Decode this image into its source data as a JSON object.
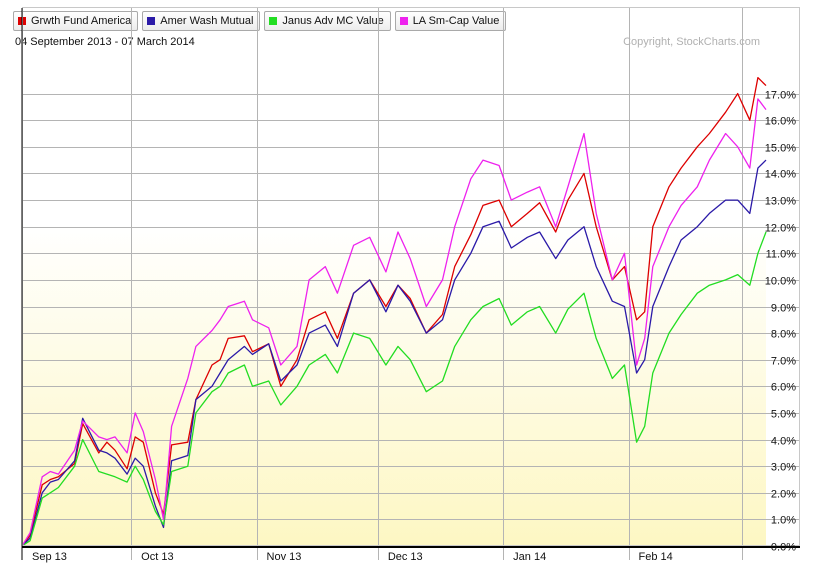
{
  "header": {
    "subtitle": "04 September 2013 - 07 March 2014",
    "copyright": "Copyright, StockCharts.com"
  },
  "chart_data": {
    "type": "line",
    "title": "",
    "xlabel": "",
    "ylabel": "",
    "ylim": [
      0,
      18
    ],
    "x_range": [
      "2013-09-04",
      "2014-03-07"
    ],
    "x_tick_labels": [
      {
        "label": "Sep 13",
        "date": "2013-09-01"
      },
      {
        "label": "Oct 13",
        "date": "2013-10-01"
      },
      {
        "label": "Nov 13",
        "date": "2013-11-01"
      },
      {
        "label": "Dec 13",
        "date": "2013-12-01"
      },
      {
        "label": "Jan 14",
        "date": "2014-01-01"
      },
      {
        "label": "Feb 14",
        "date": "2014-02-01"
      }
    ],
    "y_ticks": [
      0,
      1,
      2,
      3,
      4,
      5,
      6,
      7,
      8,
      9,
      10,
      11,
      12,
      13,
      14,
      15,
      16,
      17
    ],
    "y_tick_suffix": ".0%",
    "grid": true,
    "legend_position": "top-left",
    "background": "yellow-gradient",
    "series": [
      {
        "name": "Grwth Fund America",
        "color": "#dd0000",
        "points": [
          [
            "2013-09-04",
            0.0
          ],
          [
            "2013-09-06",
            0.4
          ],
          [
            "2013-09-09",
            2.3
          ],
          [
            "2013-09-11",
            2.5
          ],
          [
            "2013-09-13",
            2.6
          ],
          [
            "2013-09-17",
            3.1
          ],
          [
            "2013-09-19",
            4.6
          ],
          [
            "2013-09-23",
            3.5
          ],
          [
            "2013-09-25",
            3.9
          ],
          [
            "2013-09-27",
            3.6
          ],
          [
            "2013-09-30",
            2.9
          ],
          [
            "2013-10-02",
            4.1
          ],
          [
            "2013-10-04",
            3.9
          ],
          [
            "2013-10-07",
            2.0
          ],
          [
            "2013-10-09",
            1.2
          ],
          [
            "2013-10-11",
            3.8
          ],
          [
            "2013-10-15",
            3.9
          ],
          [
            "2013-10-17",
            5.5
          ],
          [
            "2013-10-21",
            6.8
          ],
          [
            "2013-10-23",
            7.0
          ],
          [
            "2013-10-25",
            7.8
          ],
          [
            "2013-10-29",
            7.9
          ],
          [
            "2013-10-31",
            7.3
          ],
          [
            "2013-11-04",
            7.6
          ],
          [
            "2013-11-07",
            6.0
          ],
          [
            "2013-11-11",
            7.0
          ],
          [
            "2013-11-14",
            8.5
          ],
          [
            "2013-11-18",
            8.8
          ],
          [
            "2013-11-21",
            7.8
          ],
          [
            "2013-11-25",
            9.5
          ],
          [
            "2013-11-29",
            10.0
          ],
          [
            "2013-12-03",
            9.0
          ],
          [
            "2013-12-06",
            9.8
          ],
          [
            "2013-12-09",
            9.3
          ],
          [
            "2013-12-13",
            8.0
          ],
          [
            "2013-12-17",
            8.7
          ],
          [
            "2013-12-20",
            10.5
          ],
          [
            "2013-12-24",
            11.7
          ],
          [
            "2013-12-27",
            12.8
          ],
          [
            "2013-12-31",
            13.0
          ],
          [
            "2014-01-03",
            12.0
          ],
          [
            "2014-01-07",
            12.5
          ],
          [
            "2014-01-10",
            12.9
          ],
          [
            "2014-01-14",
            11.8
          ],
          [
            "2014-01-17",
            13.0
          ],
          [
            "2014-01-21",
            14.0
          ],
          [
            "2014-01-24",
            12.0
          ],
          [
            "2014-01-28",
            10.0
          ],
          [
            "2014-01-31",
            10.5
          ],
          [
            "2014-02-03",
            8.5
          ],
          [
            "2014-02-05",
            8.8
          ],
          [
            "2014-02-07",
            12.0
          ],
          [
            "2014-02-11",
            13.5
          ],
          [
            "2014-02-14",
            14.2
          ],
          [
            "2014-02-18",
            15.0
          ],
          [
            "2014-02-21",
            15.5
          ],
          [
            "2014-02-25",
            16.3
          ],
          [
            "2014-02-28",
            17.0
          ],
          [
            "2014-03-03",
            16.0
          ],
          [
            "2014-03-05",
            17.6
          ],
          [
            "2014-03-07",
            17.3
          ]
        ]
      },
      {
        "name": "Amer Wash Mutual",
        "color": "#2b1aa8",
        "points": [
          [
            "2013-09-04",
            0.0
          ],
          [
            "2013-09-06",
            0.3
          ],
          [
            "2013-09-09",
            2.0
          ],
          [
            "2013-09-11",
            2.4
          ],
          [
            "2013-09-13",
            2.5
          ],
          [
            "2013-09-17",
            3.2
          ],
          [
            "2013-09-19",
            4.8
          ],
          [
            "2013-09-23",
            3.6
          ],
          [
            "2013-09-25",
            3.5
          ],
          [
            "2013-09-27",
            3.3
          ],
          [
            "2013-09-30",
            2.7
          ],
          [
            "2013-10-02",
            3.3
          ],
          [
            "2013-10-04",
            3.0
          ],
          [
            "2013-10-07",
            1.5
          ],
          [
            "2013-10-09",
            0.7
          ],
          [
            "2013-10-11",
            3.2
          ],
          [
            "2013-10-15",
            3.4
          ],
          [
            "2013-10-17",
            5.5
          ],
          [
            "2013-10-21",
            6.0
          ],
          [
            "2013-10-23",
            6.5
          ],
          [
            "2013-10-25",
            7.0
          ],
          [
            "2013-10-29",
            7.5
          ],
          [
            "2013-10-31",
            7.2
          ],
          [
            "2013-11-04",
            7.6
          ],
          [
            "2013-11-07",
            6.2
          ],
          [
            "2013-11-11",
            6.8
          ],
          [
            "2013-11-14",
            8.0
          ],
          [
            "2013-11-18",
            8.3
          ],
          [
            "2013-11-21",
            7.5
          ],
          [
            "2013-11-25",
            9.5
          ],
          [
            "2013-11-29",
            10.0
          ],
          [
            "2013-12-03",
            8.8
          ],
          [
            "2013-12-06",
            9.8
          ],
          [
            "2013-12-09",
            9.2
          ],
          [
            "2013-12-13",
            8.0
          ],
          [
            "2013-12-17",
            8.5
          ],
          [
            "2013-12-20",
            10.0
          ],
          [
            "2013-12-24",
            11.0
          ],
          [
            "2013-12-27",
            12.0
          ],
          [
            "2013-12-31",
            12.2
          ],
          [
            "2014-01-03",
            11.2
          ],
          [
            "2014-01-07",
            11.6
          ],
          [
            "2014-01-10",
            11.8
          ],
          [
            "2014-01-14",
            10.8
          ],
          [
            "2014-01-17",
            11.5
          ],
          [
            "2014-01-21",
            12.0
          ],
          [
            "2014-01-24",
            10.5
          ],
          [
            "2014-01-28",
            9.2
          ],
          [
            "2014-01-31",
            9.0
          ],
          [
            "2014-02-03",
            6.5
          ],
          [
            "2014-02-05",
            7.0
          ],
          [
            "2014-02-07",
            9.0
          ],
          [
            "2014-02-11",
            10.5
          ],
          [
            "2014-02-14",
            11.5
          ],
          [
            "2014-02-18",
            12.0
          ],
          [
            "2014-02-21",
            12.5
          ],
          [
            "2014-02-25",
            13.0
          ],
          [
            "2014-02-28",
            13.0
          ],
          [
            "2014-03-03",
            12.5
          ],
          [
            "2014-03-05",
            14.2
          ],
          [
            "2014-03-07",
            14.5
          ]
        ]
      },
      {
        "name": "Janus Adv MC Value",
        "color": "#22dd22",
        "points": [
          [
            "2013-09-04",
            0.0
          ],
          [
            "2013-09-06",
            0.2
          ],
          [
            "2013-09-09",
            1.8
          ],
          [
            "2013-09-11",
            2.0
          ],
          [
            "2013-09-13",
            2.2
          ],
          [
            "2013-09-17",
            3.0
          ],
          [
            "2013-09-19",
            4.0
          ],
          [
            "2013-09-23",
            2.8
          ],
          [
            "2013-09-25",
            2.7
          ],
          [
            "2013-09-27",
            2.6
          ],
          [
            "2013-09-30",
            2.4
          ],
          [
            "2013-10-02",
            3.0
          ],
          [
            "2013-10-04",
            2.5
          ],
          [
            "2013-10-07",
            1.3
          ],
          [
            "2013-10-09",
            0.8
          ],
          [
            "2013-10-11",
            2.8
          ],
          [
            "2013-10-15",
            3.0
          ],
          [
            "2013-10-17",
            5.0
          ],
          [
            "2013-10-21",
            5.8
          ],
          [
            "2013-10-23",
            6.0
          ],
          [
            "2013-10-25",
            6.5
          ],
          [
            "2013-10-29",
            6.8
          ],
          [
            "2013-10-31",
            6.0
          ],
          [
            "2013-11-04",
            6.2
          ],
          [
            "2013-11-07",
            5.3
          ],
          [
            "2013-11-11",
            6.0
          ],
          [
            "2013-11-14",
            6.8
          ],
          [
            "2013-11-18",
            7.2
          ],
          [
            "2013-11-21",
            6.5
          ],
          [
            "2013-11-25",
            8.0
          ],
          [
            "2013-11-29",
            7.8
          ],
          [
            "2013-12-03",
            6.8
          ],
          [
            "2013-12-06",
            7.5
          ],
          [
            "2013-12-09",
            7.0
          ],
          [
            "2013-12-13",
            5.8
          ],
          [
            "2013-12-17",
            6.2
          ],
          [
            "2013-12-20",
            7.5
          ],
          [
            "2013-12-24",
            8.5
          ],
          [
            "2013-12-27",
            9.0
          ],
          [
            "2013-12-31",
            9.3
          ],
          [
            "2014-01-03",
            8.3
          ],
          [
            "2014-01-07",
            8.8
          ],
          [
            "2014-01-10",
            9.0
          ],
          [
            "2014-01-14",
            8.0
          ],
          [
            "2014-01-17",
            8.9
          ],
          [
            "2014-01-21",
            9.5
          ],
          [
            "2014-01-24",
            7.8
          ],
          [
            "2014-01-28",
            6.3
          ],
          [
            "2014-01-31",
            6.8
          ],
          [
            "2014-02-03",
            3.9
          ],
          [
            "2014-02-05",
            4.5
          ],
          [
            "2014-02-07",
            6.5
          ],
          [
            "2014-02-11",
            8.0
          ],
          [
            "2014-02-14",
            8.7
          ],
          [
            "2014-02-18",
            9.5
          ],
          [
            "2014-02-21",
            9.8
          ],
          [
            "2014-02-25",
            10.0
          ],
          [
            "2014-02-28",
            10.2
          ],
          [
            "2014-03-03",
            9.8
          ],
          [
            "2014-03-05",
            11.0
          ],
          [
            "2014-03-07",
            11.8
          ]
        ]
      },
      {
        "name": "LA Sm-Cap Value",
        "color": "#ee22ee",
        "points": [
          [
            "2013-09-04",
            0.0
          ],
          [
            "2013-09-06",
            0.5
          ],
          [
            "2013-09-09",
            2.6
          ],
          [
            "2013-09-11",
            2.8
          ],
          [
            "2013-09-13",
            2.7
          ],
          [
            "2013-09-17",
            3.6
          ],
          [
            "2013-09-19",
            4.7
          ],
          [
            "2013-09-23",
            4.1
          ],
          [
            "2013-09-25",
            4.0
          ],
          [
            "2013-09-27",
            4.1
          ],
          [
            "2013-09-30",
            3.5
          ],
          [
            "2013-10-02",
            5.0
          ],
          [
            "2013-10-04",
            4.3
          ],
          [
            "2013-10-07",
            2.5
          ],
          [
            "2013-10-09",
            1.0
          ],
          [
            "2013-10-11",
            4.5
          ],
          [
            "2013-10-15",
            6.3
          ],
          [
            "2013-10-17",
            7.5
          ],
          [
            "2013-10-21",
            8.1
          ],
          [
            "2013-10-23",
            8.5
          ],
          [
            "2013-10-25",
            9.0
          ],
          [
            "2013-10-29",
            9.2
          ],
          [
            "2013-10-31",
            8.5
          ],
          [
            "2013-11-04",
            8.2
          ],
          [
            "2013-11-07",
            6.8
          ],
          [
            "2013-11-11",
            7.5
          ],
          [
            "2013-11-14",
            10.0
          ],
          [
            "2013-11-18",
            10.5
          ],
          [
            "2013-11-21",
            9.5
          ],
          [
            "2013-11-25",
            11.3
          ],
          [
            "2013-11-29",
            11.6
          ],
          [
            "2013-12-03",
            10.3
          ],
          [
            "2013-12-06",
            11.8
          ],
          [
            "2013-12-09",
            10.8
          ],
          [
            "2013-12-13",
            9.0
          ],
          [
            "2013-12-17",
            10.0
          ],
          [
            "2013-12-20",
            12.0
          ],
          [
            "2013-12-24",
            13.8
          ],
          [
            "2013-12-27",
            14.5
          ],
          [
            "2013-12-31",
            14.3
          ],
          [
            "2014-01-03",
            13.0
          ],
          [
            "2014-01-07",
            13.3
          ],
          [
            "2014-01-10",
            13.5
          ],
          [
            "2014-01-14",
            12.0
          ],
          [
            "2014-01-17",
            13.5
          ],
          [
            "2014-01-21",
            15.5
          ],
          [
            "2014-01-24",
            12.5
          ],
          [
            "2014-01-28",
            10.0
          ],
          [
            "2014-01-31",
            11.0
          ],
          [
            "2014-02-03",
            6.8
          ],
          [
            "2014-02-05",
            7.8
          ],
          [
            "2014-02-07",
            10.5
          ],
          [
            "2014-02-11",
            12.0
          ],
          [
            "2014-02-14",
            12.8
          ],
          [
            "2014-02-18",
            13.5
          ],
          [
            "2014-02-21",
            14.5
          ],
          [
            "2014-02-25",
            15.5
          ],
          [
            "2014-02-28",
            15.0
          ],
          [
            "2014-03-03",
            14.2
          ],
          [
            "2014-03-05",
            16.8
          ],
          [
            "2014-03-07",
            16.4
          ]
        ]
      }
    ]
  }
}
